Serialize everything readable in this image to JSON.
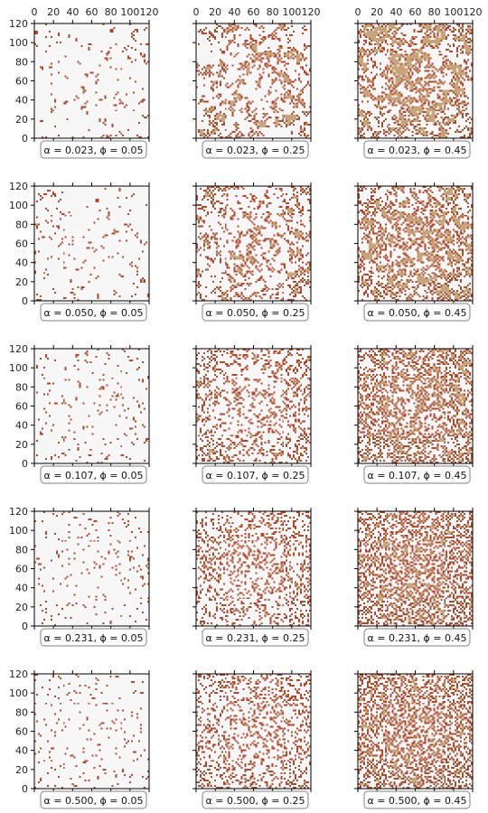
{
  "chart_data": {
    "type": "heatmap",
    "grid": {
      "rows": 5,
      "cols": 3
    },
    "axis_range": {
      "x": [
        0,
        120
      ],
      "y": [
        0,
        120
      ]
    },
    "x_ticks": [
      0,
      20,
      40,
      60,
      80,
      100,
      120
    ],
    "y_ticks": [
      0,
      20,
      40,
      60,
      80,
      100,
      120
    ],
    "x_tick_labels_location": "top of first row",
    "y_tick_labels_location": "left of first column",
    "colors": {
      "empty": "#f7f7f7",
      "occupied": "#b04a2e",
      "cluster": "#c8a47a"
    },
    "legend": "none",
    "grid_lines": false,
    "panels": [
      {
        "label": "α = 0.023, ϕ = 0.05",
        "alpha": 0.023,
        "phi": 0.05,
        "density": 0.05
      },
      {
        "label": "α = 0.023, ϕ = 0.25",
        "alpha": 0.023,
        "phi": 0.25,
        "density": 0.25
      },
      {
        "label": "α = 0.023, ϕ = 0.45",
        "alpha": 0.023,
        "phi": 0.45,
        "density": 0.45
      },
      {
        "label": "α = 0.050, ϕ = 0.05",
        "alpha": 0.05,
        "phi": 0.05,
        "density": 0.05
      },
      {
        "label": "α = 0.050, ϕ = 0.25",
        "alpha": 0.05,
        "phi": 0.25,
        "density": 0.25
      },
      {
        "label": "α = 0.050, ϕ = 0.45",
        "alpha": 0.05,
        "phi": 0.45,
        "density": 0.45
      },
      {
        "label": "α = 0.107, ϕ = 0.05",
        "alpha": 0.107,
        "phi": 0.05,
        "density": 0.05
      },
      {
        "label": "α = 0.107, ϕ = 0.25",
        "alpha": 0.107,
        "phi": 0.25,
        "density": 0.25
      },
      {
        "label": "α = 0.107, ϕ = 0.45",
        "alpha": 0.107,
        "phi": 0.45,
        "density": 0.45
      },
      {
        "label": "α = 0.231, ϕ = 0.05",
        "alpha": 0.231,
        "phi": 0.05,
        "density": 0.05
      },
      {
        "label": "α = 0.231, ϕ = 0.25",
        "alpha": 0.231,
        "phi": 0.25,
        "density": 0.25
      },
      {
        "label": "α = 0.231, ϕ = 0.45",
        "alpha": 0.231,
        "phi": 0.45,
        "density": 0.45
      },
      {
        "label": "α = 0.500, ϕ = 0.05",
        "alpha": 0.5,
        "phi": 0.05,
        "density": 0.05
      },
      {
        "label": "α = 0.500, ϕ = 0.25",
        "alpha": 0.5,
        "phi": 0.25,
        "density": 0.25
      },
      {
        "label": "α = 0.500, ϕ = 0.45",
        "alpha": 0.5,
        "phi": 0.45,
        "density": 0.45
      }
    ]
  }
}
